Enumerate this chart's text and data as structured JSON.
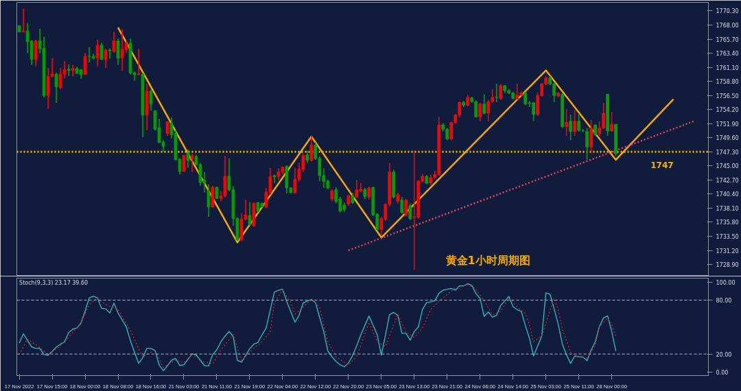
{
  "chart_data": [
    {
      "type": "candlestick",
      "tick_labels": "y",
      "ylim": [
        1727.0,
        1771.7
      ],
      "yticks": [
        {
          "value": 1770.3,
          "label": "1770.30"
        },
        {
          "value": 1768.0,
          "label": "1768.00"
        },
        {
          "value": 1765.7,
          "label": "1765.70"
        },
        {
          "value": 1763.4,
          "label": "1763.40"
        },
        {
          "value": 1761.1,
          "label": "1761.10"
        },
        {
          "value": 1758.8,
          "label": "1758.80"
        },
        {
          "value": 1756.5,
          "label": "1756.50"
        },
        {
          "value": 1754.2,
          "label": "1754.20"
        },
        {
          "value": 1751.9,
          "label": "1751.90"
        },
        {
          "value": 1749.6,
          "label": "1749.60"
        },
        {
          "value": 1747.3,
          "label": "1747.30"
        },
        {
          "value": 1745.0,
          "label": "1745.00"
        },
        {
          "value": 1742.7,
          "label": "1742.70"
        },
        {
          "value": 1740.4,
          "label": "1740.40"
        },
        {
          "value": 1738.1,
          "label": "1738.10"
        },
        {
          "value": 1735.8,
          "label": "1735.80"
        },
        {
          "value": 1733.5,
          "label": "1733.50"
        },
        {
          "value": 1731.2,
          "label": "1731.20"
        },
        {
          "value": 1728.9,
          "label": "1728.90"
        }
      ],
      "categories": [
        null,
        null,
        null,
        null,
        null,
        null,
        null,
        null,
        null,
        null,
        null,
        null,
        null,
        null,
        null,
        null,
        null,
        null,
        null,
        null,
        null,
        null,
        null,
        null,
        null,
        null,
        null,
        null,
        null,
        null,
        null,
        null,
        null,
        null,
        null,
        null,
        null,
        null,
        null,
        null,
        null,
        null,
        null,
        null,
        null,
        null,
        null,
        null,
        null,
        null,
        null,
        null,
        null,
        null,
        null,
        null,
        null,
        null,
        null,
        null,
        null,
        null,
        null,
        null,
        null,
        null,
        null,
        null,
        null,
        null,
        null,
        null,
        null,
        null,
        null,
        null,
        null,
        null,
        null,
        null,
        null,
        null,
        null,
        null,
        null,
        null,
        null,
        null,
        null,
        null,
        null,
        null,
        null,
        null,
        null,
        null,
        null,
        null,
        null,
        null,
        null,
        null,
        null,
        null,
        null,
        null,
        null,
        null,
        null,
        null,
        null,
        null,
        null,
        null,
        null,
        null,
        null,
        null,
        null,
        null,
        null,
        null,
        null,
        null,
        null,
        null,
        null,
        null,
        null,
        null,
        null,
        null,
        null,
        null,
        null,
        null,
        null,
        null,
        null,
        null,
        null,
        null,
        null,
        null,
        null,
        null,
        null,
        null,
        null,
        null,
        null,
        null,
        null,
        null,
        null,
        null,
        null,
        null,
        null,
        null,
        null,
        null,
        null,
        null,
        null
      ],
      "ohlc": [
        [
          1767.9,
          1767.9,
          1766.9,
          1766.9
        ],
        [
          1766.9,
          1770.7,
          1766.9,
          1767.0
        ],
        [
          1767.0,
          1768.3,
          1763.4,
          1765.3
        ],
        [
          1765.4,
          1765.4,
          1761.5,
          1762.4
        ],
        [
          1762.4,
          1765.6,
          1761.3,
          1765.4
        ],
        [
          1765.4,
          1767.4,
          1763.4,
          1764.2
        ],
        [
          1764.2,
          1766.1,
          1756.2,
          1756.5
        ],
        [
          1756.5,
          1761.0,
          1754.3,
          1759.6
        ],
        [
          1759.6,
          1762.6,
          1759.5,
          1760.0
        ],
        [
          1760.0,
          1760.2,
          1755.3,
          1757.9
        ],
        [
          1757.8,
          1761.0,
          1757.5,
          1760.0
        ],
        [
          1760.0,
          1762.1,
          1759.3,
          1760.7
        ],
        [
          1760.8,
          1761.6,
          1759.7,
          1760.6
        ],
        [
          1760.6,
          1761.5,
          1759.6,
          1760.9
        ],
        [
          1760.9,
          1761.2,
          1760.0,
          1760.1
        ],
        [
          1760.7,
          1760.8,
          1759.2,
          1759.9
        ],
        [
          1759.9,
          1763.4,
          1759.9,
          1762.9
        ],
        [
          1762.9,
          1764.4,
          1761.9,
          1762.9
        ],
        [
          1762.9,
          1763.3,
          1762.4,
          1762.6
        ],
        [
          1762.6,
          1765.6,
          1761.3,
          1764.7
        ],
        [
          1764.7,
          1765.1,
          1762.3,
          1762.4
        ],
        [
          1762.4,
          1764.1,
          1761.0,
          1763.9
        ],
        [
          1763.9,
          1764.2,
          1762.5,
          1763.8
        ],
        [
          1763.7,
          1766.9,
          1763.5,
          1765.4
        ],
        [
          1765.4,
          1765.8,
          1761.5,
          1762.6
        ],
        [
          1762.6,
          1767.4,
          1760.5,
          1764.1
        ],
        [
          1764.0,
          1765.4,
          1763.5,
          1765.0
        ],
        [
          1765.0,
          1765.8,
          1759.9,
          1760.2
        ],
        [
          1760.2,
          1760.4,
          1758.9,
          1759.9
        ],
        [
          1759.9,
          1764.1,
          1759.9,
          1760.0
        ],
        [
          1760.0,
          1760.2,
          1749.7,
          1753.3
        ],
        [
          1753.3,
          1758.4,
          1750.8,
          1757.2
        ],
        [
          1757.2,
          1757.5,
          1754.0,
          1755.1
        ],
        [
          1754.0,
          1754.1,
          1750.8,
          1751.0
        ],
        [
          1751.2,
          1752.7,
          1748.8,
          1748.8
        ],
        [
          1748.9,
          1749.2,
          1747.3,
          1748.2
        ],
        [
          1750.3,
          1752.3,
          1749.9,
          1752.2
        ],
        [
          1752.0,
          1752.9,
          1749.5,
          1750.1
        ],
        [
          1750.3,
          1750.8,
          1745.9,
          1746.0
        ],
        [
          1746.1,
          1746.2,
          1743.6,
          1744.1
        ],
        [
          1744.1,
          1746.8,
          1744.0,
          1746.7
        ],
        [
          1747.1,
          1747.7,
          1744.7,
          1745.9
        ],
        [
          1746.2,
          1747.0,
          1744.0,
          1746.6
        ],
        [
          1746.5,
          1746.8,
          1745.1,
          1745.2
        ],
        [
          1745.2,
          1745.5,
          1741.8,
          1742.3
        ],
        [
          1742.7,
          1744.0,
          1740.7,
          1742.3
        ],
        [
          1740.9,
          1742.0,
          1736.7,
          1738.3
        ],
        [
          1738.3,
          1741.8,
          1738.2,
          1741.5
        ],
        [
          1741.5,
          1741.6,
          1739.6,
          1739.7
        ],
        [
          1739.7,
          1740.9,
          1739.2,
          1740.1
        ],
        [
          1740.1,
          1746.6,
          1739.8,
          1743.3
        ],
        [
          1743.3,
          1746.2,
          1740.9,
          1741.1
        ],
        [
          1741.1,
          1741.7,
          1735.2,
          1736.4
        ],
        [
          1736.4,
          1736.6,
          1732.8,
          1732.9
        ],
        [
          1732.9,
          1737.2,
          1732.8,
          1736.3
        ],
        [
          1736.3,
          1739.5,
          1736.1,
          1737.0
        ],
        [
          1736.9,
          1739.1,
          1735.3,
          1735.5
        ],
        [
          1735.2,
          1739.0,
          1735.2,
          1738.9
        ],
        [
          1739.0,
          1739.1,
          1737.4,
          1737.6
        ],
        [
          1738.9,
          1739.0,
          1738.2,
          1738.3
        ],
        [
          1738.3,
          1741.4,
          1738.1,
          1740.7
        ],
        [
          1740.7,
          1744.7,
          1740.3,
          1743.3
        ],
        [
          1743.4,
          1743.6,
          1742.2,
          1743.2
        ],
        [
          1743.3,
          1744.6,
          1742.7,
          1744.0
        ],
        [
          1744.0,
          1744.9,
          1743.6,
          1744.8
        ],
        [
          1744.9,
          1745.1,
          1740.5,
          1741.4
        ],
        [
          1741.4,
          1741.5,
          1740.6,
          1740.6
        ],
        [
          1740.6,
          1744.7,
          1740.5,
          1742.8
        ],
        [
          1742.8,
          1745.5,
          1742.5,
          1744.5
        ],
        [
          1744.4,
          1747.0,
          1744.0,
          1746.7
        ],
        [
          1746.8,
          1747.5,
          1745.5,
          1745.9
        ],
        [
          1745.9,
          1749.9,
          1745.7,
          1748.4
        ],
        [
          1748.4,
          1748.8,
          1746.0,
          1746.2
        ],
        [
          1746.2,
          1746.6,
          1742.5,
          1743.4
        ],
        [
          1743.4,
          1744.6,
          1741.4,
          1742.5
        ],
        [
          1742.5,
          1742.8,
          1741.2,
          1741.4
        ],
        [
          1739.6,
          1741.2,
          1739.2,
          1740.9
        ],
        [
          1741.1,
          1741.5,
          1738.9,
          1739.2
        ],
        [
          1739.6,
          1739.9,
          1737.4,
          1737.6
        ],
        [
          1738.6,
          1739.0,
          1737.5,
          1737.9
        ],
        [
          1738.8,
          1740.3,
          1738.5,
          1740.1
        ],
        [
          1740.1,
          1740.6,
          1738.8,
          1739.0
        ],
        [
          1739.9,
          1742.7,
          1739.8,
          1741.1
        ],
        [
          1740.9,
          1742.2,
          1740.8,
          1741.2
        ],
        [
          1741.1,
          1741.4,
          1739.6,
          1740.0
        ],
        [
          1739.9,
          1741.6,
          1739.5,
          1741.4
        ],
        [
          1741.5,
          1741.6,
          1736.8,
          1737.0
        ],
        [
          1737.1,
          1737.3,
          1734.5,
          1734.6
        ],
        [
          1734.6,
          1736.7,
          1733.7,
          1736.4
        ],
        [
          1736.3,
          1738.9,
          1736.0,
          1738.7
        ],
        [
          1738.7,
          1745.5,
          1738.4,
          1744.0
        ],
        [
          1744.0,
          1744.4,
          1739.7,
          1739.9
        ],
        [
          1739.2,
          1740.6,
          1738.9,
          1740.3
        ],
        [
          1739.4,
          1739.9,
          1737.2,
          1737.4
        ],
        [
          1737.0,
          1739.6,
          1736.7,
          1739.4
        ],
        [
          1738.5,
          1738.9,
          1736.2,
          1736.4
        ],
        [
          1736.6,
          1747.5,
          1728.0,
          1736.7
        ],
        [
          1736.6,
          1742.7,
          1736.4,
          1742.5
        ],
        [
          1742.5,
          1743.7,
          1742.3,
          1743.3
        ],
        [
          1743.3,
          1743.5,
          1742.0,
          1742.2
        ],
        [
          1742.2,
          1743.6,
          1741.9,
          1743.1
        ],
        [
          1743.1,
          1744.2,
          1742.9,
          1743.6
        ],
        [
          1743.6,
          1753.0,
          1743.4,
          1751.7
        ],
        [
          1751.7,
          1752.0,
          1750.6,
          1751.0
        ],
        [
          1751.0,
          1751.2,
          1749.2,
          1749.4
        ],
        [
          1749.4,
          1752.2,
          1749.2,
          1752.1
        ],
        [
          1752.1,
          1753.5,
          1751.9,
          1753.3
        ],
        [
          1753.3,
          1755.5,
          1752.9,
          1755.4
        ],
        [
          1755.4,
          1755.6,
          1754.6,
          1754.9
        ],
        [
          1754.9,
          1756.6,
          1754.7,
          1756.2
        ],
        [
          1756.1,
          1756.3,
          1755.3,
          1755.5
        ],
        [
          1755.5,
          1755.7,
          1753.0,
          1753.0
        ],
        [
          1753.0,
          1755.3,
          1752.3,
          1755.1
        ],
        [
          1755.1,
          1756.7,
          1753.4,
          1753.6
        ],
        [
          1753.6,
          1755.8,
          1752.3,
          1755.5
        ],
        [
          1755.5,
          1757.5,
          1755.3,
          1756.2
        ],
        [
          1756.2,
          1758.4,
          1755.4,
          1756.2
        ],
        [
          1756.0,
          1758.4,
          1755.8,
          1758.1
        ],
        [
          1758.1,
          1758.2,
          1756.9,
          1757.3
        ],
        [
          1757.3,
          1757.6,
          1756.7,
          1756.9
        ],
        [
          1756.9,
          1757.1,
          1755.8,
          1756.0
        ],
        [
          1755.9,
          1758.4,
          1755.8,
          1756.6
        ],
        [
          1756.6,
          1757.2,
          1756.4,
          1756.9
        ],
        [
          1756.9,
          1757.1,
          1754.9,
          1755.1
        ],
        [
          1755.3,
          1755.6,
          1754.6,
          1755.2
        ],
        [
          1755.3,
          1755.4,
          1752.3,
          1753.4
        ],
        [
          1753.4,
          1756.9,
          1753.2,
          1756.5
        ],
        [
          1756.5,
          1758.5,
          1756.3,
          1758.4
        ],
        [
          1758.4,
          1759.7,
          1758.2,
          1759.4
        ],
        [
          1759.4,
          1759.7,
          1758.2,
          1758.4
        ],
        [
          1758.4,
          1758.6,
          1755.4,
          1756.5
        ],
        [
          1756.4,
          1757.0,
          1756.2,
          1756.9
        ],
        [
          1756.7,
          1756.9,
          1751.2,
          1751.4
        ],
        [
          1751.4,
          1754.3,
          1749.9,
          1752.1
        ],
        [
          1752.3,
          1753.4,
          1749.2,
          1750.6
        ],
        [
          1750.6,
          1754.1,
          1749.9,
          1752.3
        ],
        [
          1752.3,
          1753.6,
          1750.6,
          1750.8
        ],
        [
          1750.8,
          1751.0,
          1750.5,
          1750.8
        ],
        [
          1750.6,
          1751.2,
          1746.0,
          1748.1
        ],
        [
          1748.1,
          1752.5,
          1747.0,
          1751.2
        ],
        [
          1751.7,
          1751.8,
          1750.0,
          1750.1
        ],
        [
          1750.3,
          1752.3,
          1749.9,
          1751.2
        ],
        [
          1751.2,
          1755.3,
          1751.0,
          1753.6
        ],
        [
          1756.7,
          1756.7,
          1749.9,
          1750.7
        ],
        [
          1750.7,
          1753.8,
          1750.6,
          1751.8
        ],
        [
          1751.8,
          1751.8,
          1746.6,
          1747.0
        ],
        null,
        null,
        null,
        null,
        null,
        null,
        null,
        null,
        null,
        null,
        null,
        null,
        null,
        null,
        null,
        null,
        null,
        null,
        null
      ],
      "colors": [
        "#00a000",
        "#ff0000",
        "#00a000",
        "#00a000",
        "#ff0000",
        "#00a000",
        "#00a000",
        "#ff0000",
        "#ff0000",
        "#00a000",
        "#ff0000",
        "#ff0000",
        "#00a000",
        "#ff0000",
        "#00a000",
        "#00a000",
        "#ff0000",
        "#00a000",
        "#00a000",
        "#ff0000",
        "#00a000",
        "#ff0000",
        "#00a000",
        "#ff0000",
        "#00a000",
        "#ff0000",
        "#ff0000",
        "#00a000",
        "#00a000",
        "#ff0000",
        "#00a000",
        "#ff0000",
        "#00a000",
        "#00a000",
        "#00a000",
        "#00a000",
        "#ff0000",
        "#00a000",
        "#00a000",
        "#00a000",
        "#ff0000",
        "#00a000",
        "#ff0000",
        "#00a000",
        "#00a000",
        "#00a000",
        "#00a000",
        "#ff0000",
        "#00a000",
        "#ff0000",
        "#ff0000",
        "#00a000",
        "#00a000",
        "#00a000",
        "#ff0000",
        "#ff0000",
        "#00a000",
        "#ff0000",
        "#00a000",
        "#00a000",
        "#ff0000",
        "#ff0000",
        "#00a000",
        "#ff0000",
        "#ff0000",
        "#00a000",
        "#00a000",
        "#ff0000",
        "#ff0000",
        "#ff0000",
        "#00a000",
        "#ff0000",
        "#00a000",
        "#00a000",
        "#00a000",
        "#00a000",
        "#ff0000",
        "#00a000",
        "#00a000",
        "#00a000",
        "#ff0000",
        "#00a000",
        "#ff0000",
        "#ff0000",
        "#00a000",
        "#ff0000",
        "#00a000",
        "#00a000",
        "#ff0000",
        "#ff0000",
        "#ff0000",
        "#00a000",
        "#ff0000",
        "#00a000",
        "#ff0000",
        "#00a000",
        "#ff0000",
        "#ff0000",
        "#ff0000",
        "#00a000",
        "#ff0000",
        "#ff0000",
        "#ff0000",
        "#00a000",
        "#00a000",
        "#ff0000",
        "#ff0000",
        "#ff0000",
        "#00a000",
        "#ff0000",
        "#00a000",
        "#00a000",
        "#ff0000",
        "#00a000",
        "#ff0000",
        "#ff0000",
        "#00a000",
        "#ff0000",
        "#00a000",
        "#00a000",
        "#00a000",
        "#ff0000",
        "#ff0000",
        "#00a000",
        "#00a000",
        "#00a000",
        "#ff0000",
        "#ff0000",
        "#ff0000",
        "#00a000",
        "#00a000",
        "#ff0000",
        "#00a000",
        "#ff0000",
        "#00a000",
        "#ff0000",
        "#00a000",
        "#00a000",
        "#00a000",
        "#ff0000",
        "#00a000",
        "#ff0000",
        "#ff0000",
        "#00a000",
        "#ff0000",
        "#00a000",
        null,
        null,
        null,
        null,
        null,
        null,
        null,
        null,
        null,
        null,
        null,
        null,
        null,
        null,
        null,
        null,
        null,
        null,
        null
      ],
      "series": [
        {
          "type": "line",
          "color": "#f5a800",
          "line_style": "solid",
          "values": [
            null,
            null,
            null,
            null,
            null,
            null,
            null,
            null,
            null,
            null,
            null,
            null,
            null,
            null,
            null,
            null,
            null,
            null,
            null,
            null,
            null,
            null,
            null,
            null,
            1767.6,
            null,
            null,
            null,
            null,
            null,
            null,
            null,
            null,
            null,
            null,
            null,
            null,
            null,
            null,
            null,
            null,
            null,
            null,
            null,
            null,
            null,
            null,
            null,
            null,
            null,
            null,
            null,
            null,
            1732.5,
            null,
            null,
            null,
            null,
            null,
            null,
            null,
            null,
            null,
            null,
            null,
            null,
            null,
            null,
            null,
            null,
            null,
            1749.8,
            null,
            null,
            null,
            null,
            null,
            null,
            null,
            null,
            null,
            null,
            null,
            null,
            null,
            null,
            null,
            null,
            1733.3,
            null,
            null,
            null,
            null,
            null,
            null,
            null,
            null,
            null,
            null,
            null,
            null,
            null,
            null,
            null,
            null,
            null,
            null,
            null,
            null,
            null,
            null,
            null,
            null,
            null,
            null,
            null,
            null,
            null,
            null,
            null,
            null,
            null,
            null,
            null,
            null,
            null,
            null,
            null,
            1760.6,
            null,
            null,
            null,
            null,
            null,
            null,
            null,
            null,
            null,
            null,
            null,
            null,
            null,
            null,
            null,
            null,
            1746.0,
            null,
            null,
            null,
            null,
            null,
            null,
            null,
            null,
            null,
            null,
            null,
            null,
            null,
            1755.9,
            null,
            null,
            null,
            null,
            null
          ]
        },
        {
          "type": "line",
          "color": "#e8455a",
          "line_style": "dotted",
          "values": [
            null,
            null,
            null,
            null,
            null,
            null,
            null,
            null,
            null,
            null,
            null,
            null,
            null,
            null,
            null,
            null,
            null,
            null,
            null,
            null,
            null,
            null,
            null,
            null,
            null,
            null,
            null,
            null,
            null,
            null,
            null,
            null,
            null,
            null,
            null,
            null,
            null,
            null,
            null,
            null,
            null,
            null,
            null,
            null,
            null,
            null,
            null,
            null,
            null,
            null,
            null,
            null,
            null,
            null,
            null,
            null,
            null,
            null,
            null,
            null,
            null,
            null,
            null,
            null,
            null,
            null,
            null,
            null,
            null,
            null,
            null,
            null,
            null,
            null,
            null,
            null,
            null,
            null,
            null,
            null,
            1731.2,
            null,
            null,
            null,
            null,
            null,
            null,
            null,
            null,
            null,
            null,
            null,
            null,
            null,
            null,
            null,
            null,
            null,
            null,
            null,
            null,
            null,
            null,
            null,
            null,
            null,
            null,
            null,
            null,
            null,
            null,
            null,
            null,
            null,
            null,
            null,
            null,
            null,
            null,
            null,
            null,
            null,
            null,
            null,
            null,
            null,
            null,
            null,
            null,
            null,
            null,
            null,
            null,
            null,
            null,
            null,
            null,
            null,
            null,
            null,
            null,
            null,
            null,
            null,
            null,
            null,
            null,
            null,
            null,
            null,
            null,
            null,
            null,
            null,
            null,
            null,
            null,
            null,
            null,
            null,
            null,
            null,
            null,
            null,
            1752.3
          ]
        }
      ],
      "ref_lines": [
        {
          "axis": "y",
          "value": 1747.3,
          "label": "1747",
          "color": "#f5b000",
          "line_style": "dotted"
        }
      ],
      "annotations": [
        "黄金1小时周期图"
      ]
    },
    {
      "type": "line",
      "title": "Stoch(9,3,3) 23.17 39.60",
      "ylim": [
        -4,
        104.5
      ],
      "categories": [
        "17 Nov 2022",
        null,
        null,
        null,
        null,
        null,
        null,
        null,
        "17 Nov 15:00",
        null,
        null,
        null,
        null,
        null,
        null,
        null,
        "18 Nov 00:00",
        null,
        null,
        null,
        null,
        null,
        null,
        null,
        "18 Nov 08:00",
        null,
        null,
        null,
        null,
        null,
        null,
        null,
        "18 Nov 16:00",
        null,
        null,
        null,
        null,
        null,
        null,
        null,
        "21 Nov 03:00",
        null,
        null,
        null,
        null,
        null,
        null,
        null,
        "21 Nov 11:00",
        null,
        null,
        null,
        null,
        null,
        null,
        null,
        "21 Nov 19:00",
        null,
        null,
        null,
        null,
        null,
        null,
        null,
        "22 Nov 04:00",
        null,
        null,
        null,
        null,
        null,
        null,
        null,
        "22 Nov 12:00",
        null,
        null,
        null,
        null,
        null,
        null,
        null,
        "22 Nov 20:00",
        null,
        null,
        null,
        null,
        null,
        null,
        null,
        "23 Nov 05:00",
        null,
        null,
        null,
        null,
        null,
        null,
        null,
        "23 Nov 13:00",
        null,
        null,
        null,
        null,
        null,
        null,
        null,
        "23 Nov 21:00",
        null,
        null,
        null,
        null,
        null,
        null,
        null,
        "24 Nov 06:00",
        null,
        null,
        null,
        null,
        null,
        null,
        null,
        "24 Nov 14:00",
        null,
        null,
        null,
        null,
        null,
        null,
        null,
        "25 Nov 03:00",
        null,
        null,
        null,
        null,
        null,
        null,
        null,
        "25 Nov 11:00",
        null,
        null,
        null,
        null,
        null,
        null,
        null,
        "28 Nov 00:00",
        null,
        null,
        null,
        null,
        null,
        null,
        null,
        null,
        null,
        null,
        null,
        null,
        null,
        null,
        null,
        null,
        null,
        null,
        null,
        null
      ],
      "yticks": [
        {
          "value": 100,
          "label": "100.00"
        },
        {
          "value": 80,
          "label": "80.00"
        },
        {
          "value": 20,
          "label": "20.00"
        },
        {
          "value": 0,
          "label": "0.00"
        }
      ],
      "ref_lines": [
        {
          "axis": "y",
          "value": 80,
          "color": "#b0b8c8",
          "line_style": "dashed"
        },
        {
          "axis": "y",
          "value": 20,
          "color": "#b0b8c8",
          "line_style": "dashed"
        }
      ],
      "series": [
        {
          "color": "#2fb5b5",
          "line_style": "solid",
          "values": [
            32.3,
            42.6,
            35,
            27.9,
            26.3,
            26.3,
            19.4,
            18.7,
            23,
            27.7,
            31,
            33.6,
            43.9,
            47.8,
            49.0,
            54.2,
            68,
            82.5,
            84.6,
            82.5,
            70.9,
            70.4,
            65.7,
            76.6,
            65.7,
            58,
            50.3,
            34.9,
            22,
            9.6,
            15.6,
            26.3,
            26.3,
            23.8,
            7.8,
            1.4,
            7,
            13.0,
            15.1,
            7.3,
            8,
            14,
            20.2,
            18.9,
            13.0,
            7.3,
            6.6,
            19.4,
            24.6,
            33.6,
            40,
            45.1,
            39.3,
            13.0,
            11.0,
            18,
            25.9,
            31.0,
            32.8,
            41.3,
            49.0,
            69,
            88.9,
            91,
            92.2,
            78.6,
            67,
            55.4,
            63.2,
            76.8,
            79,
            80.7,
            77.3,
            60.6,
            45,
            23.3,
            17,
            11.7,
            8,
            5.8,
            10,
            18.1,
            29,
            41.3,
            52,
            62.4,
            52,
            41.3,
            18.7,
            41,
            64.0,
            66.3,
            63.2,
            43.1,
            43.1,
            35.4,
            45,
            50.3,
            69.6,
            77.3,
            78,
            79.4,
            87.6,
            91,
            92.2,
            93.0,
            91.2,
            95.9,
            95.9,
            98.3,
            96.4,
            87.2,
            82.0,
            61.9,
            66.9,
            61.0,
            63.1,
            74.2,
            79,
            84.1,
            72.8,
            69.5,
            67.6,
            51.9,
            37.5,
            17.8,
            29,
            40.1,
            88.1,
            86.7,
            70.2,
            53.2,
            31.0,
            19.2,
            9.5,
            17.8,
            17,
            16.6,
            12.6,
            24.4,
            33.6,
            50.6,
            60.3,
            62.4,
            45,
            23.2,
            null,
            null,
            null,
            null,
            null,
            null,
            null,
            null,
            null,
            null,
            null,
            null,
            null,
            null,
            null,
            null,
            null,
            null,
            null
          ]
        },
        {
          "color": "#c8203c",
          "line_style": "dotted",
          "values": [
            19.4,
            null,
            36.6,
            null,
            null,
            27.2,
            null,
            19.4,
            null,
            25.4,
            null,
            33.6,
            null,
            43.9,
            null,
            55.4,
            null,
            74.8,
            null,
            82.5,
            null,
            74.8,
            null,
            null,
            69.6,
            61.9,
            null,
            46.4,
            null,
            25.9,
            16.9,
            null,
            null,
            24.6,
            null,
            5.3,
            null,
            null,
            13.0,
            null,
            10.4,
            null,
            19.4,
            null,
            null,
            11.0,
            null,
            9.1,
            null,
            24.6,
            null,
            null,
            41.8,
            null,
            13.0,
            null,
            null,
            26.3,
            null,
            33.6,
            null,
            45.1,
            77.3,
            null,
            91.5,
            null,
            77.3,
            64.5,
            null,
            72.2,
            null,
            81.2,
            null,
            72.2,
            null,
            33.6,
            null,
            16.9,
            null,
            null,
            7.8,
            null,
            16.9,
            null,
            null,
            55.4,
            null,
            33.6,
            null,
            28.4,
            null,
            null,
            64.5,
            null,
            43.9,
            null,
            38.7,
            null,
            49.0,
            null,
            69.6,
            null,
            78.6,
            null,
            86.3,
            null,
            93.8,
            null,
            null,
            97.2,
            null,
            92.5,
            null,
            79.4,
            null,
            63.7,
            null,
            67.6,
            null,
            82.0,
            null,
            72.8,
            null,
            65.0,
            53.2,
            33.6,
            null,
            40.1,
            null,
            69.0,
            82.0,
            69.0,
            48.0,
            null,
            21.8,
            null,
            16.6,
            null,
            15.2,
            null,
            29.6,
            50.6,
            null,
            59.8,
            53.2,
            39.6,
            null,
            null,
            null,
            null,
            null,
            null,
            null,
            null,
            null,
            null,
            null,
            null,
            null,
            null,
            null,
            null,
            null,
            null,
            null
          ]
        }
      ]
    }
  ]
}
